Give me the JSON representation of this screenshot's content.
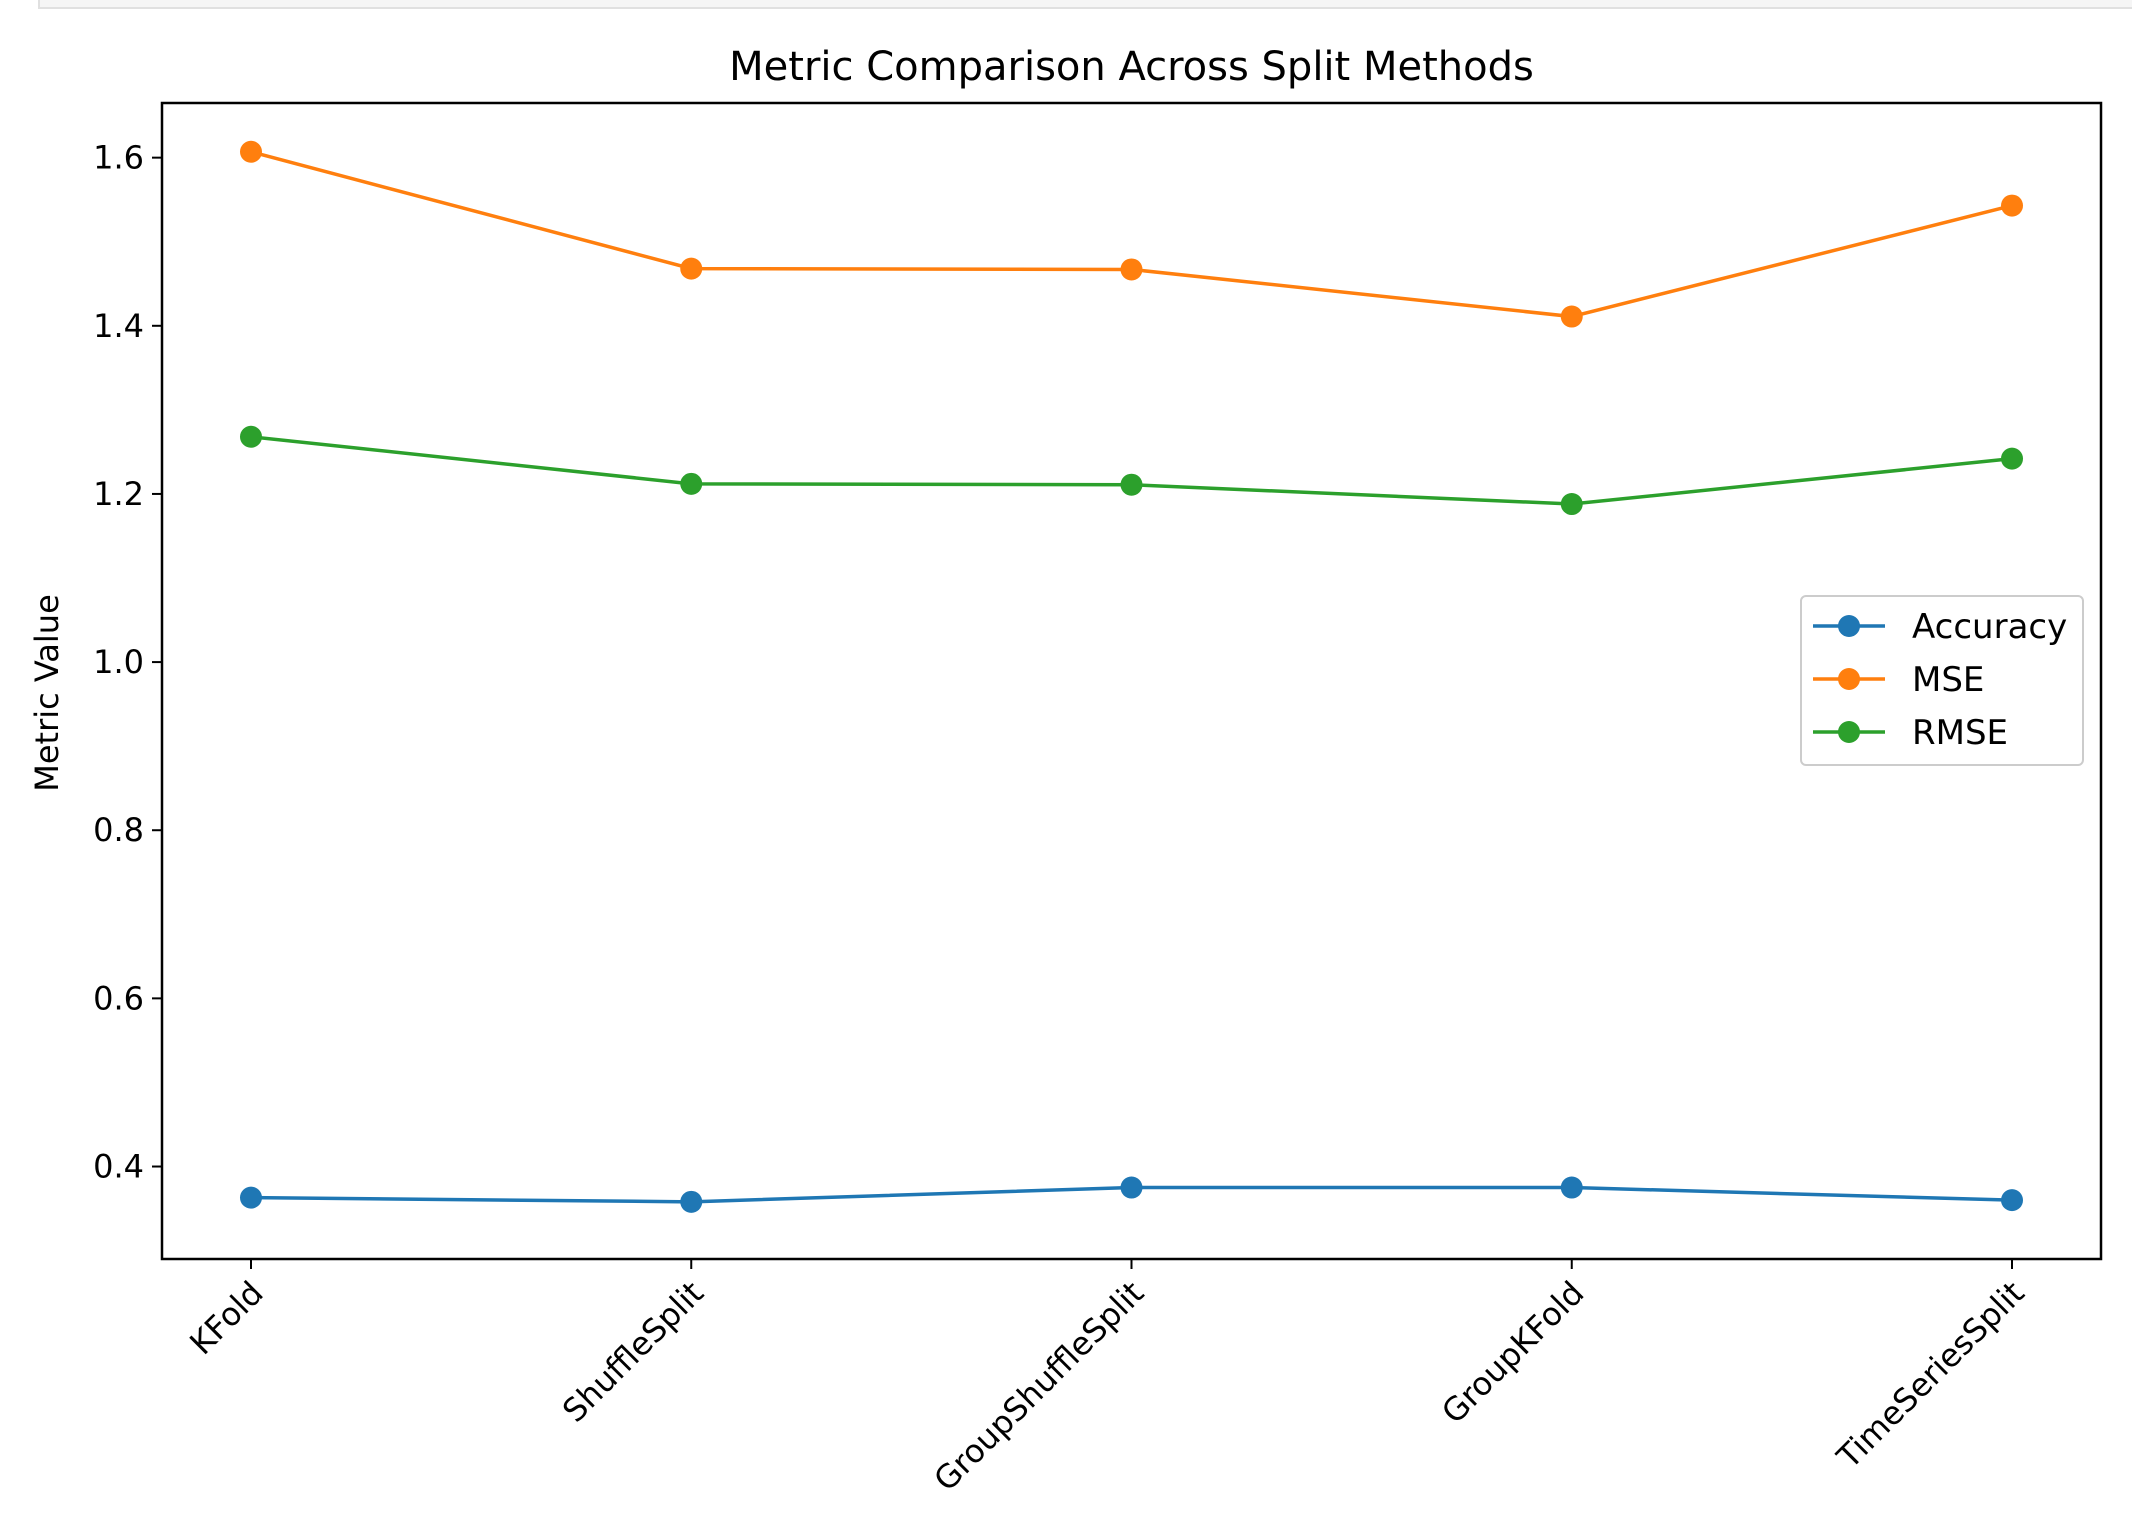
{
  "chart_data": {
    "type": "line",
    "title": "Metric Comparison Across Split Methods",
    "xlabel": "",
    "ylabel": "Metric Value",
    "categories": [
      "KFold",
      "ShuffleSplit",
      "GroupShuffleSplit",
      "GroupKFold",
      "TimeSeriesSplit"
    ],
    "yticks": [
      "0.4",
      "0.6",
      "0.8",
      "1.0",
      "1.2",
      "1.4",
      "1.6"
    ],
    "ylim": [
      0.29,
      1.665
    ],
    "grid": false,
    "legend_position": "center-right",
    "series": [
      {
        "name": "Accuracy",
        "color": "#1f77b4",
        "marker": "circle",
        "values": [
          0.363,
          0.358,
          0.375,
          0.375,
          0.36
        ]
      },
      {
        "name": "MSE",
        "color": "#ff7f0e",
        "marker": "circle",
        "values": [
          1.607,
          1.468,
          1.467,
          1.411,
          1.543
        ]
      },
      {
        "name": "RMSE",
        "color": "#2ca02c",
        "marker": "circle",
        "values": [
          1.268,
          1.212,
          1.211,
          1.188,
          1.242
        ]
      }
    ]
  }
}
